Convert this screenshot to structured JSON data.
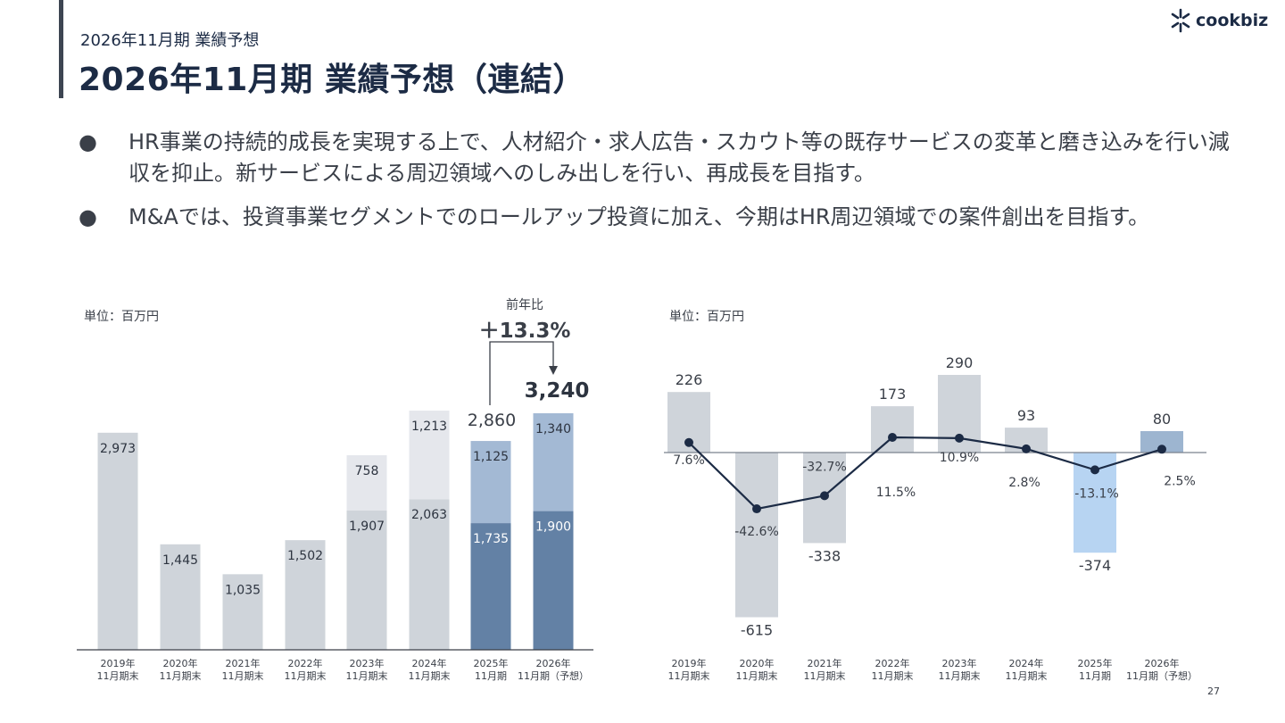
{
  "header": {
    "kicker": "2026年11月期 業績予想",
    "title": "2026年11月期 業績予想（連結）",
    "logo_text": "cookbiz"
  },
  "bullets": [
    "HR事業の持続的成長を実現する上で、人材紹介・求人広告・スカウト等の既存サービスの変革と磨き込みを行い減収を抑止。新サービスによる周辺領域へのしみ出しを行い、再成長を目指す。",
    "M&Aでは、投資事業セグメントでのロールアップ投資に加え、今期はHR周辺領域での案件創出を目指す。"
  ],
  "bullet_marker": "●",
  "page_number": "27",
  "chart_data": [
    {
      "type": "bar",
      "stacked": true,
      "unit_label": "単位：百万円",
      "categories": [
        "2019年\n11月期末",
        "2020年\n11月期末",
        "2021年\n11月期末",
        "2022年\n11月期末",
        "2023年\n11月期末",
        "2024年\n11月期末",
        "2025年\n11月期",
        "2026年\n11月期（予想）"
      ],
      "series": [
        {
          "values": [
            2973,
            1445,
            1035,
            1502,
            1907,
            2063,
            1735,
            1900
          ],
          "labels": [
            "2,973",
            "1,445",
            "1,035",
            "1,502",
            "1,907",
            "2,063",
            "1,735",
            "1,900"
          ]
        },
        {
          "values": [
            0,
            0,
            0,
            0,
            758,
            1213,
            1125,
            1340
          ],
          "labels": [
            "",
            "",
            "",
            "",
            "758",
            "1,213",
            "1,125",
            "1,340"
          ]
        }
      ],
      "totals": {
        "2025": "2,860",
        "2026": "3,240"
      },
      "yoy_caption": "前年比",
      "yoy_value": "＋13.3%",
      "colors": {
        "past": "#cfd4da",
        "past_top": "#e5e7ec",
        "current_bottom": "#6381a5",
        "current_top": "#a3b9d4",
        "axis": "#3a3f48"
      }
    },
    {
      "type": "bar+line",
      "unit_label": "単位：百万円",
      "categories": [
        "2019年\n11月期末",
        "2020年\n11月期末",
        "2021年\n11月期末",
        "2022年\n11月期末",
        "2023年\n11月期末",
        "2024年\n11月期末",
        "2025年\n11月期",
        "2026年\n11月期（予想）"
      ],
      "values": [
        226,
        -615,
        -338,
        173,
        290,
        93,
        -374,
        80
      ],
      "value_labels": [
        "226",
        "-615",
        "-338",
        "173",
        "290",
        "93",
        "-374",
        "80"
      ],
      "percent_values": [
        7.6,
        -42.6,
        -32.7,
        11.5,
        10.9,
        2.8,
        -13.1,
        2.5
      ],
      "percent_labels": [
        "7.6%",
        "-42.6%",
        "-32.7%",
        "11.5%",
        "10.9%",
        "2.8%",
        "-13.1%",
        "2.5%"
      ],
      "colors": {
        "past": "#cfd4da",
        "current_negative": "#b7d4f2",
        "forecast": "#9db5d0",
        "line": "#1c2b45"
      }
    }
  ]
}
